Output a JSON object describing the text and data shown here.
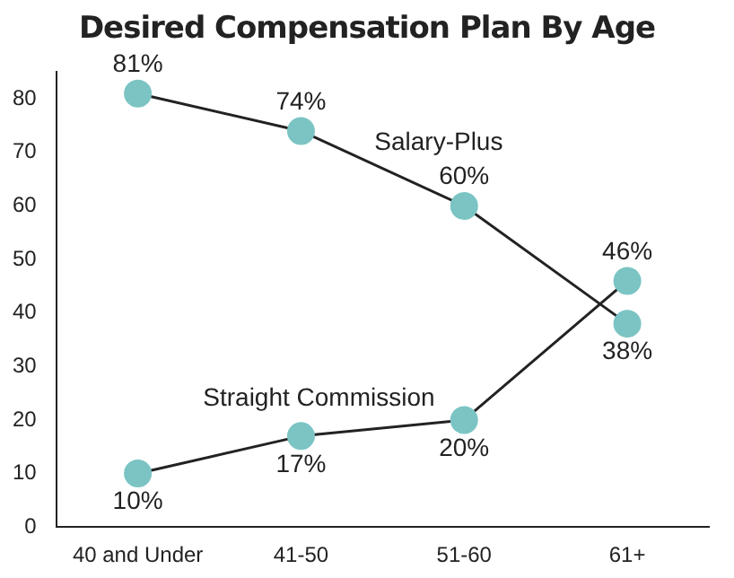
{
  "chart_data": {
    "type": "line",
    "title": "Desired Compensation Plan By Age",
    "categories": [
      "40 and Under",
      "41-50",
      "51-60",
      "61+"
    ],
    "series": [
      {
        "name": "Salary-Plus",
        "color": "#7cc4c4",
        "values": [
          81,
          74,
          60,
          38
        ],
        "value_labels": [
          "81%",
          "74%",
          "60%",
          "38%"
        ]
      },
      {
        "name": "Straight Commission",
        "color": "#7cc4c4",
        "values": [
          10,
          17,
          20,
          46
        ],
        "value_labels": [
          "10%",
          "17%",
          "20%",
          "46%"
        ]
      }
    ],
    "ylim": [
      0,
      85
    ],
    "yticks": [
      0,
      10,
      20,
      30,
      40,
      50,
      60,
      70,
      80
    ],
    "grid": false,
    "legend": false,
    "marker": "circle",
    "line_style": "solid"
  }
}
